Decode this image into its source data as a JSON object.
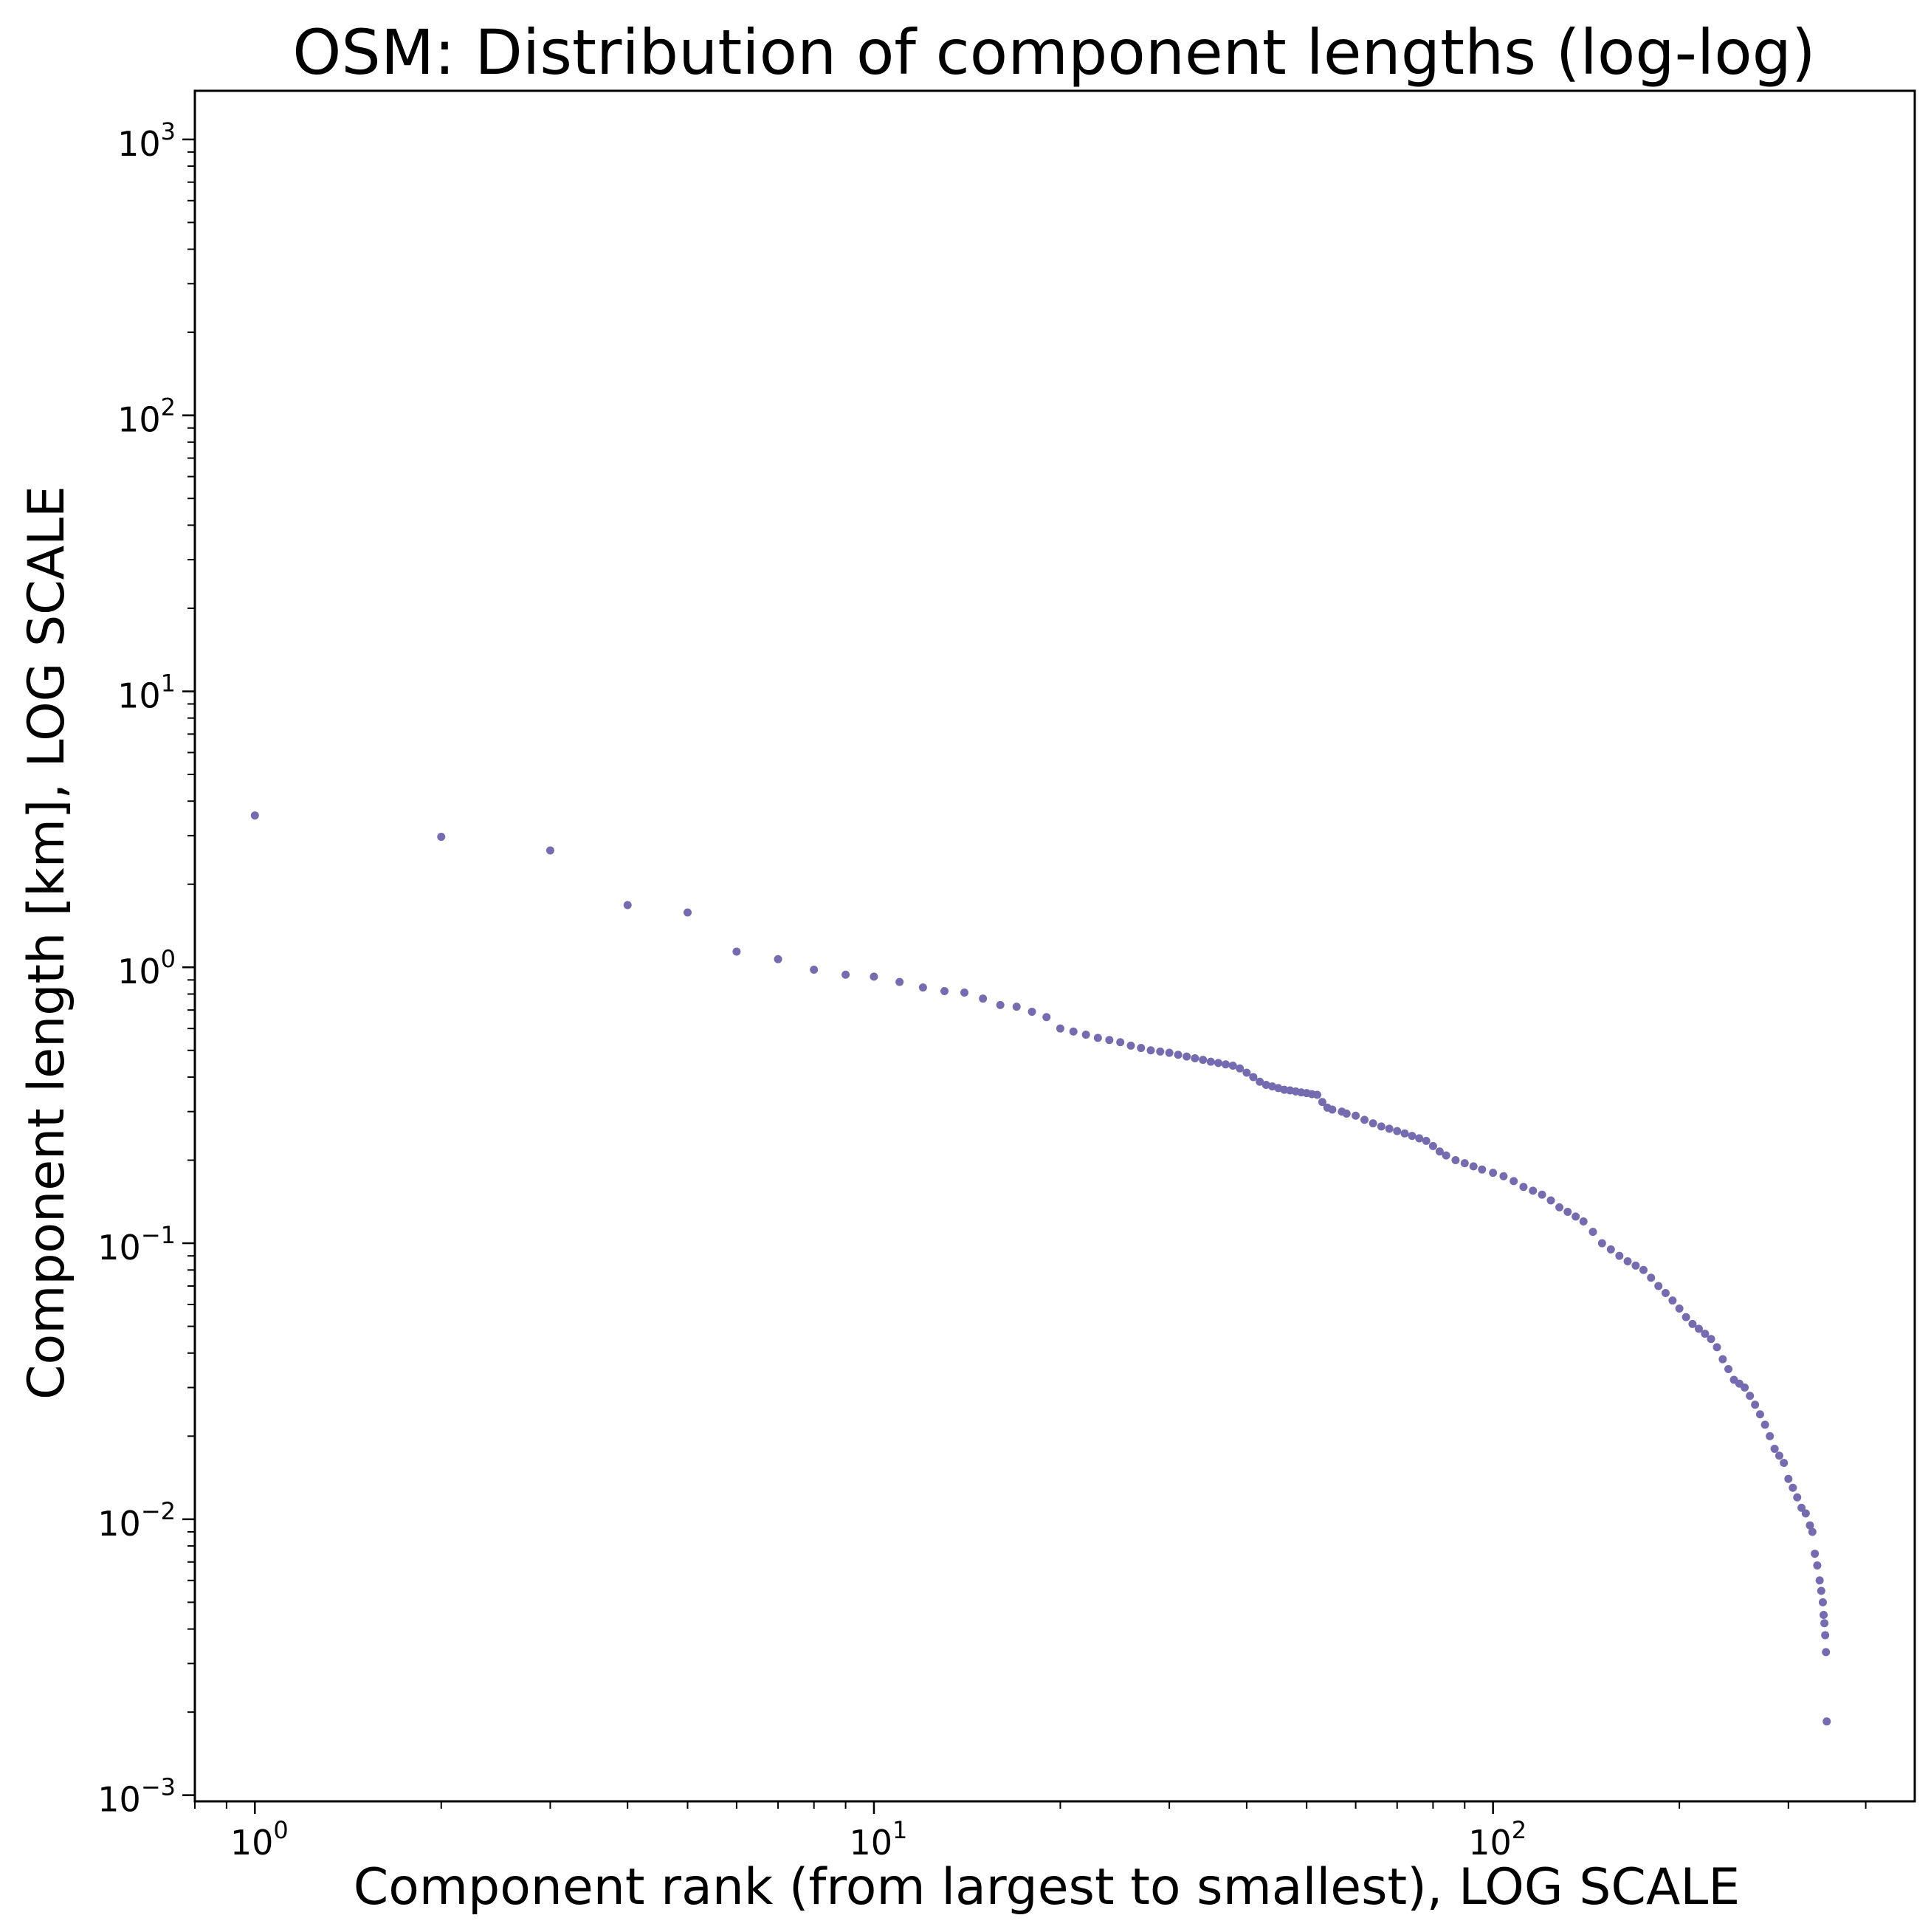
{
  "chart_data": {
    "type": "scatter",
    "title": "OSM: Distribution of component lengths (log-log)",
    "xlabel": "Component rank (from largest to smallest), LOG SCALE",
    "ylabel": "Component length [km], LOG SCALE",
    "xscale": "log",
    "yscale": "log",
    "xlim": [
      0.8,
      480
    ],
    "ylim": [
      0.00095,
      1500
    ],
    "grid": false,
    "legend": "none",
    "marker_color": "#756bb1",
    "x_ticks": [
      {
        "value": 1,
        "base": "10",
        "exp": "0"
      },
      {
        "value": 10,
        "base": "10",
        "exp": "1"
      },
      {
        "value": 100,
        "base": "10",
        "exp": "2"
      }
    ],
    "y_ticks": [
      {
        "value": 0.001,
        "base": "10",
        "exp": "−3"
      },
      {
        "value": 0.01,
        "base": "10",
        "exp": "−2"
      },
      {
        "value": 0.1,
        "base": "10",
        "exp": "−1"
      },
      {
        "value": 1,
        "base": "10",
        "exp": "0"
      },
      {
        "value": 10,
        "base": "10",
        "exp": "1"
      },
      {
        "value": 100,
        "base": "10",
        "exp": "2"
      },
      {
        "value": 1000,
        "base": "10",
        "exp": "3"
      }
    ],
    "points": [
      [
        1,
        3.55
      ],
      [
        2,
        2.97
      ],
      [
        3,
        2.65
      ],
      [
        4,
        1.68
      ],
      [
        5,
        1.58
      ],
      [
        6,
        1.14
      ],
      [
        7,
        1.07
      ],
      [
        8,
        0.98
      ],
      [
        9,
        0.94
      ],
      [
        10,
        0.925
      ],
      [
        11,
        0.885
      ],
      [
        12,
        0.845
      ],
      [
        13,
        0.82
      ],
      [
        14,
        0.81
      ],
      [
        15,
        0.77
      ],
      [
        16,
        0.73
      ],
      [
        17,
        0.72
      ],
      [
        18,
        0.69
      ],
      [
        19,
        0.66
      ],
      [
        20,
        0.6
      ],
      [
        21,
        0.585
      ],
      [
        22,
        0.57
      ],
      [
        23,
        0.555
      ],
      [
        24,
        0.545
      ],
      [
        25,
        0.535
      ],
      [
        26,
        0.52
      ],
      [
        27,
        0.51
      ],
      [
        28,
        0.5
      ],
      [
        29,
        0.495
      ],
      [
        30,
        0.49
      ],
      [
        31,
        0.482
      ],
      [
        32,
        0.475
      ],
      [
        33,
        0.468
      ],
      [
        34,
        0.462
      ],
      [
        35,
        0.455
      ],
      [
        36,
        0.45
      ],
      [
        37,
        0.445
      ],
      [
        38,
        0.44
      ],
      [
        39,
        0.43
      ],
      [
        40,
        0.415
      ],
      [
        41,
        0.4
      ],
      [
        42,
        0.385
      ],
      [
        43,
        0.375
      ],
      [
        44,
        0.37
      ],
      [
        45,
        0.365
      ],
      [
        46,
        0.36
      ],
      [
        47,
        0.358
      ],
      [
        48,
        0.355
      ],
      [
        49,
        0.352
      ],
      [
        50,
        0.35
      ],
      [
        51,
        0.347
      ],
      [
        52,
        0.345
      ],
      [
        53,
        0.325
      ],
      [
        54,
        0.31
      ],
      [
        55,
        0.305
      ],
      [
        57,
        0.3
      ],
      [
        58,
        0.295
      ],
      [
        60,
        0.29
      ],
      [
        62,
        0.28
      ],
      [
        64,
        0.272
      ],
      [
        66,
        0.265
      ],
      [
        68,
        0.26
      ],
      [
        70,
        0.255
      ],
      [
        72,
        0.25
      ],
      [
        74,
        0.245
      ],
      [
        76,
        0.24
      ],
      [
        78,
        0.235
      ],
      [
        80,
        0.225
      ],
      [
        82,
        0.215
      ],
      [
        84,
        0.208
      ],
      [
        87,
        0.2
      ],
      [
        90,
        0.195
      ],
      [
        93,
        0.19
      ],
      [
        96,
        0.185
      ],
      [
        100,
        0.18
      ],
      [
        104,
        0.175
      ],
      [
        108,
        0.168
      ],
      [
        112,
        0.16
      ],
      [
        116,
        0.155
      ],
      [
        120,
        0.15
      ],
      [
        124,
        0.143
      ],
      [
        128,
        0.135
      ],
      [
        132,
        0.13
      ],
      [
        136,
        0.125
      ],
      [
        140,
        0.12
      ],
      [
        145,
        0.11
      ],
      [
        150,
        0.1
      ],
      [
        155,
        0.095
      ],
      [
        160,
        0.09
      ],
      [
        165,
        0.086
      ],
      [
        170,
        0.083
      ],
      [
        175,
        0.08
      ],
      [
        180,
        0.075
      ],
      [
        185,
        0.07
      ],
      [
        190,
        0.066
      ],
      [
        195,
        0.062
      ],
      [
        200,
        0.058
      ],
      [
        205,
        0.054
      ],
      [
        210,
        0.051
      ],
      [
        215,
        0.049
      ],
      [
        220,
        0.047
      ],
      [
        225,
        0.045
      ],
      [
        230,
        0.042
      ],
      [
        235,
        0.038
      ],
      [
        240,
        0.035
      ],
      [
        245,
        0.032
      ],
      [
        250,
        0.031
      ],
      [
        255,
        0.03
      ],
      [
        260,
        0.028
      ],
      [
        265,
        0.026
      ],
      [
        270,
        0.024
      ],
      [
        275,
        0.022
      ],
      [
        280,
        0.02
      ],
      [
        285,
        0.018
      ],
      [
        290,
        0.017
      ],
      [
        295,
        0.016
      ],
      [
        300,
        0.014
      ],
      [
        305,
        0.013
      ],
      [
        310,
        0.012
      ],
      [
        315,
        0.011
      ],
      [
        320,
        0.0105
      ],
      [
        325,
        0.0095
      ],
      [
        328,
        0.009
      ],
      [
        331,
        0.0075
      ],
      [
        334,
        0.0068
      ],
      [
        337,
        0.006
      ],
      [
        339,
        0.0055
      ],
      [
        341,
        0.005
      ],
      [
        342,
        0.0045
      ],
      [
        343,
        0.0042
      ],
      [
        344,
        0.0038
      ],
      [
        345,
        0.0033
      ],
      [
        346,
        0.00185
      ]
    ]
  }
}
